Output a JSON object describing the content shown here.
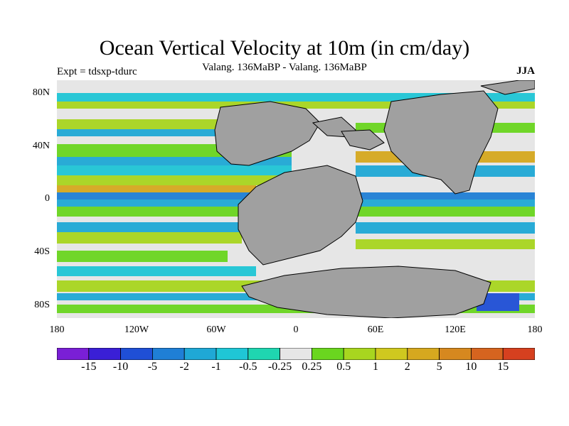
{
  "title": "Ocean Vertical Velocity at 10m (in cm/day)",
  "subtitle": "Valang. 136MaBP - Valang.  136MaBP",
  "experiment": "Expt = tdsxp-tdurc",
  "season": "JJA",
  "y_axis_labels": [
    "80N",
    "40N",
    "0",
    "40S",
    "80S"
  ],
  "x_axis_labels": [
    "180",
    "120W",
    "60W",
    "0",
    "60E",
    "120E",
    "180"
  ],
  "colorbar": {
    "colors": [
      "#7a1fd6",
      "#3a1fd6",
      "#1f4fd6",
      "#1f7fd6",
      "#1fa8d6",
      "#1fc6d6",
      "#1fd6b0",
      "#e6e6e6",
      "#6ad61f",
      "#a8d61f",
      "#cfc81f",
      "#d6a81f",
      "#d6881f",
      "#d6641f",
      "#d6401f"
    ],
    "labels": [
      "-15",
      "-10",
      "-5",
      "-2",
      "-1",
      "-0.5",
      "-0.25",
      "0.25",
      "0.5",
      "1",
      "2",
      "5",
      "10",
      "15"
    ]
  },
  "land_color": "#a0a0a0"
}
